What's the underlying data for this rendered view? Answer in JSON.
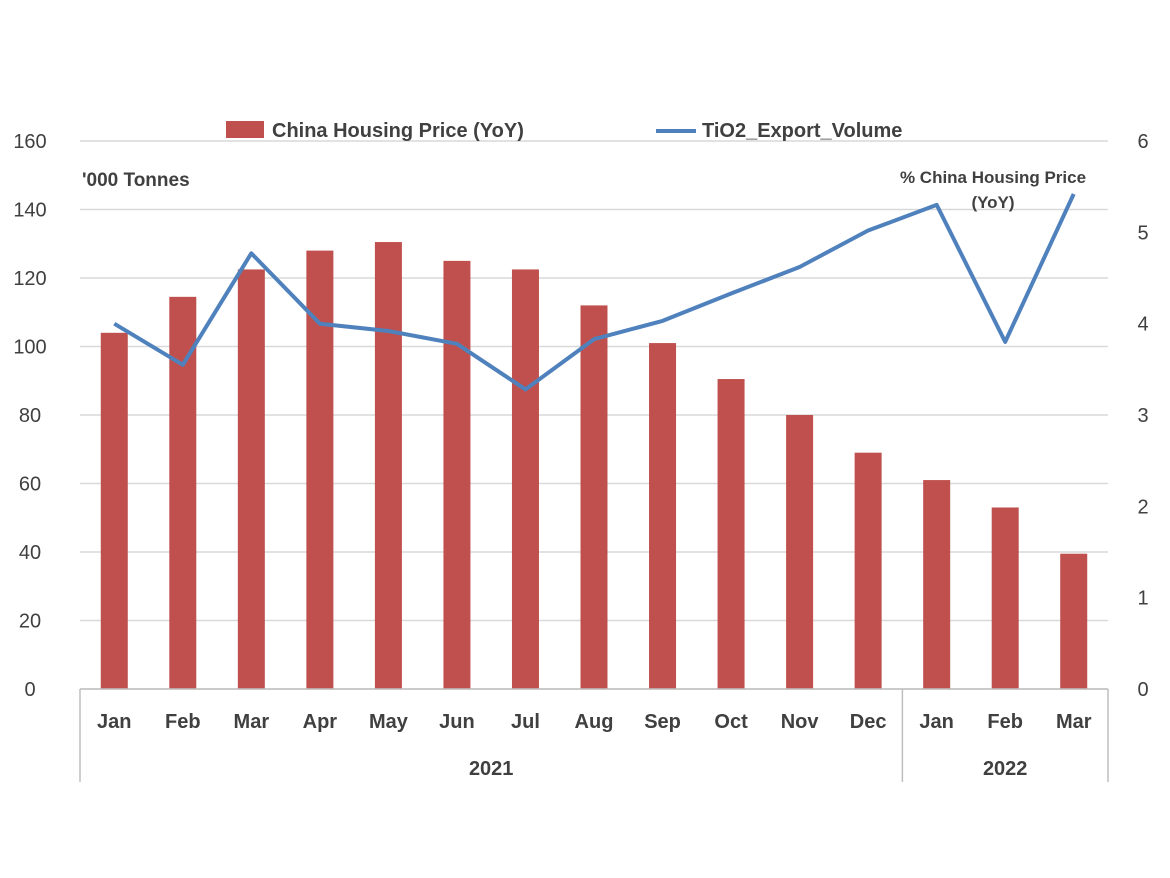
{
  "chart_data": {
    "type": "bar+line",
    "categories": [
      "Jan",
      "Feb",
      "Mar",
      "Apr",
      "May",
      "Jun",
      "Jul",
      "Aug",
      "Sep",
      "Oct",
      "Nov",
      "Dec",
      "Jan",
      "Feb",
      "Mar"
    ],
    "groups": [
      {
        "label": "2021",
        "count": 12
      },
      {
        "label": "2022",
        "count": 3
      }
    ],
    "series": [
      {
        "name": "China Housing Price (YoY)",
        "kind": "bar",
        "axis": "left",
        "color": "#C0504D",
        "values": [
          104,
          114.5,
          122.5,
          128,
          130.5,
          125,
          122.5,
          112,
          101,
          90.5,
          80,
          69,
          61,
          53,
          39.5
        ]
      },
      {
        "name": "TiO2_Export_Volume",
        "kind": "line",
        "axis": "right",
        "color": "#4F81BD",
        "values": [
          4.0,
          3.55,
          4.77,
          4.0,
          3.92,
          3.78,
          3.28,
          3.83,
          4.03,
          4.33,
          4.62,
          5.02,
          5.3,
          3.8,
          5.42
        ]
      }
    ],
    "left_axis": {
      "title": "'000 Tonnes",
      "min": 0,
      "max": 160,
      "ticks": [
        "0",
        "20",
        "40",
        "60",
        "80",
        "100",
        "120",
        "140",
        "160"
      ]
    },
    "right_axis": {
      "title_line1": "% China Housing Price",
      "title_line2": "(YoY)",
      "min": 0,
      "max": 6,
      "ticks": [
        "0",
        "1",
        "2",
        "3",
        "4",
        "5",
        "6"
      ]
    },
    "legend": {
      "position": "top",
      "items": [
        "China Housing Price (YoY)",
        "TiO2_Export_Volume"
      ]
    },
    "grid": true
  }
}
